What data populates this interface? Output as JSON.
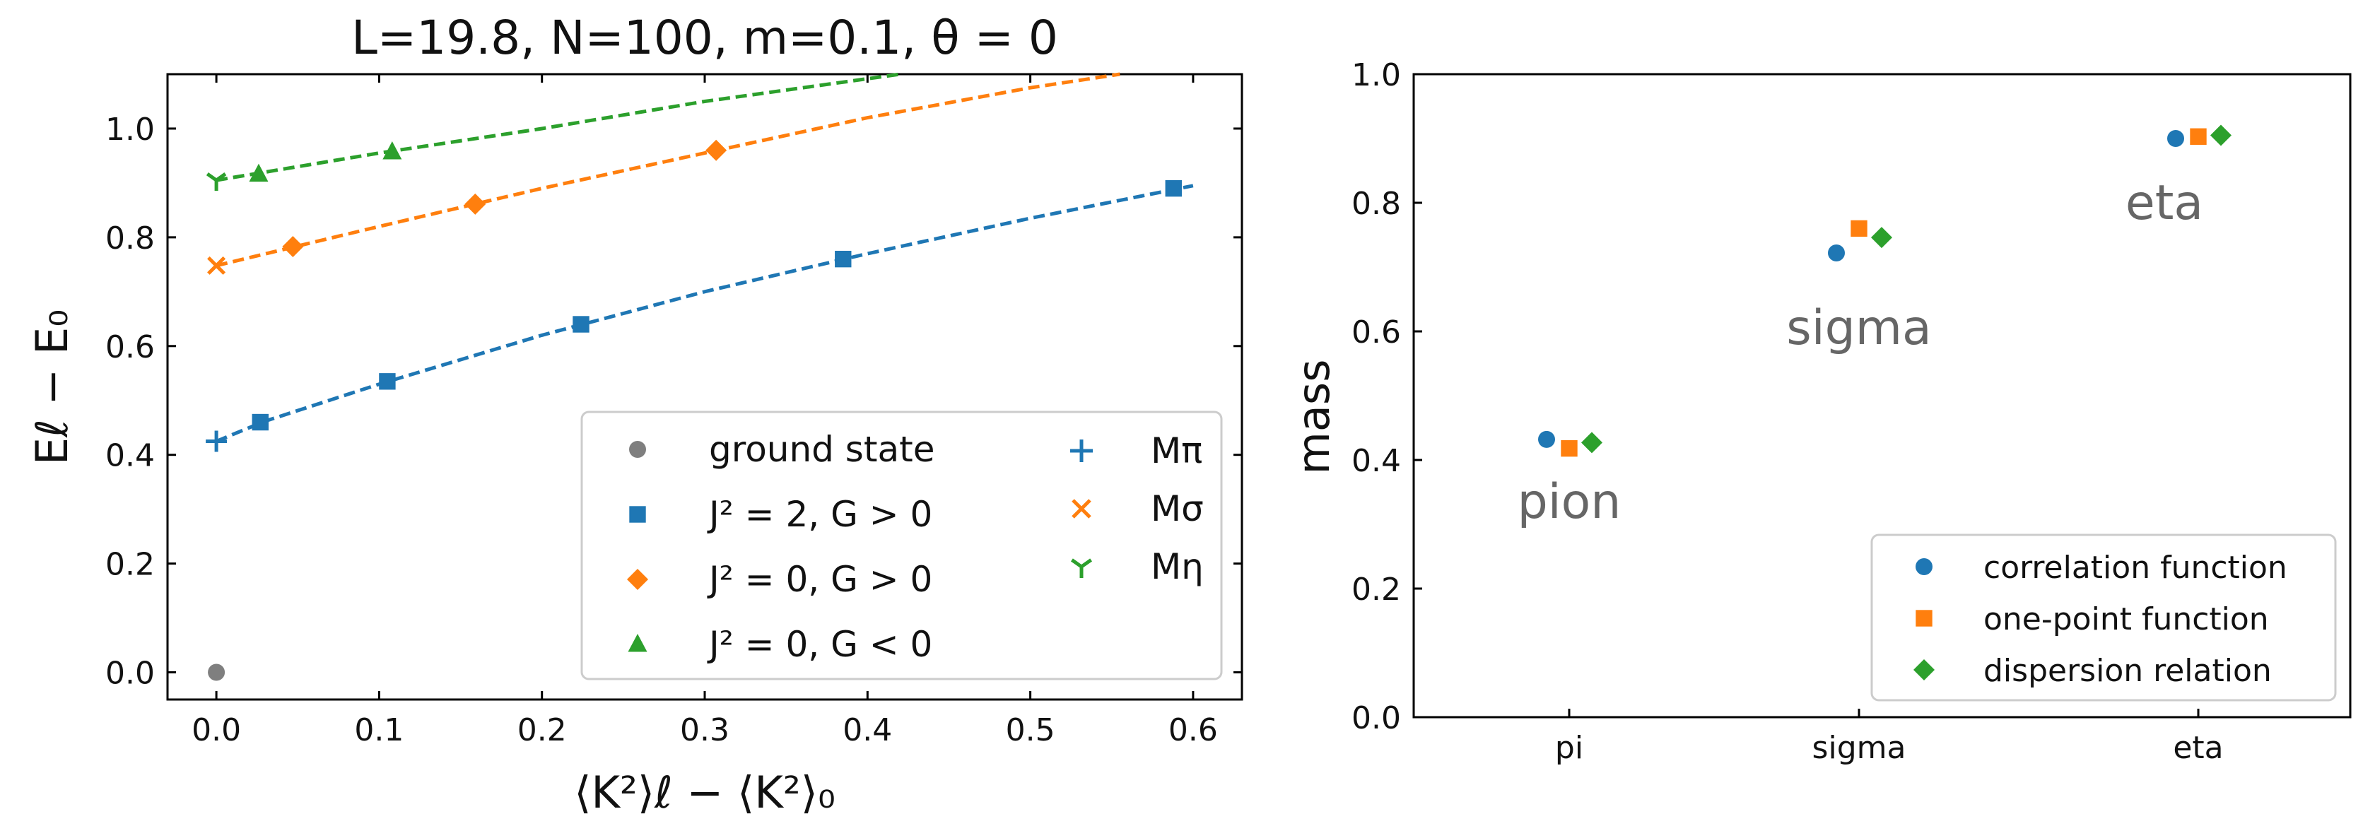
{
  "colors": {
    "blue": "#1f77b4",
    "orange": "#ff7f0e",
    "green": "#2ca02c",
    "gray": "#7f7f7f"
  },
  "chart_data": [
    {
      "type": "line",
      "title": "L=19.8, N=100, m=0.1, θ = 0",
      "xlabel": "⟨K²⟩ℓ − ⟨K²⟩₀",
      "ylabel": "Eℓ − E₀",
      "xlim": [
        -0.03,
        0.63
      ],
      "ylim": [
        -0.05,
        1.1
      ],
      "xticks": [
        "0.0",
        "0.1",
        "0.2",
        "0.3",
        "0.4",
        "0.5",
        "0.6"
      ],
      "yticks": [
        "0.0",
        "0.2",
        "0.4",
        "0.6",
        "0.8",
        "1.0"
      ],
      "series": [
        {
          "name": "J² = 2, G > 0",
          "marker": "square",
          "color": "#1f77b4",
          "points": [
            [
              0.027,
              0.46
            ],
            [
              0.105,
              0.535
            ],
            [
              0.224,
              0.64
            ],
            [
              0.385,
              0.76
            ],
            [
              0.588,
              0.89
            ]
          ],
          "fit": [
            [
              0.0,
              0.425
            ],
            [
              0.03,
              0.462
            ],
            [
              0.1,
              0.53
            ],
            [
              0.2,
              0.62
            ],
            [
              0.3,
              0.7
            ],
            [
              0.4,
              0.77
            ],
            [
              0.5,
              0.835
            ],
            [
              0.6,
              0.895
            ]
          ]
        },
        {
          "name": "J² = 0, G > 0",
          "marker": "diamond",
          "color": "#ff7f0e",
          "points": [
            [
              0.047,
              0.783
            ],
            [
              0.159,
              0.861
            ],
            [
              0.307,
              0.96
            ]
          ],
          "fit": [
            [
              0.0,
              0.748
            ],
            [
              0.1,
              0.82
            ],
            [
              0.2,
              0.89
            ],
            [
              0.3,
              0.955
            ],
            [
              0.4,
              1.02
            ],
            [
              0.5,
              1.075
            ],
            [
              0.555,
              1.1
            ]
          ]
        },
        {
          "name": "J² = 0, G < 0",
          "marker": "triangle",
          "color": "#2ca02c",
          "points": [
            [
              0.026,
              0.916
            ],
            [
              0.108,
              0.957
            ]
          ],
          "fit": [
            [
              0.0,
              0.905
            ],
            [
              0.1,
              0.955
            ],
            [
              0.2,
              1.0
            ],
            [
              0.3,
              1.05
            ],
            [
              0.42,
              1.1
            ]
          ]
        },
        {
          "name": "ground state",
          "marker": "circle",
          "color": "#7f7f7f",
          "points": [
            [
              0.0,
              0.0
            ]
          ]
        },
        {
          "name": "Mπ",
          "marker": "plus",
          "color": "#1f77b4",
          "points": [
            [
              0.0,
              0.425
            ]
          ]
        },
        {
          "name": "Mσ",
          "marker": "x",
          "color": "#ff7f0e",
          "points": [
            [
              0.0,
              0.748
            ]
          ]
        },
        {
          "name": "Mη",
          "marker": "tri_down",
          "color": "#2ca02c",
          "points": [
            [
              0.0,
              0.905
            ]
          ]
        }
      ],
      "legend": {
        "placement": "lower-right",
        "col1": [
          {
            "marker": "circle",
            "color": "#7f7f7f",
            "label": "ground state"
          },
          {
            "marker": "square",
            "color": "#1f77b4",
            "label": "J² = 2, G > 0"
          },
          {
            "marker": "diamond",
            "color": "#ff7f0e",
            "label": "J² = 0, G > 0"
          },
          {
            "marker": "triangle",
            "color": "#2ca02c",
            "label": "J² = 0, G < 0"
          }
        ],
        "col2": [
          {
            "marker": "plus",
            "color": "#1f77b4",
            "label": "Mπ"
          },
          {
            "marker": "x",
            "color": "#ff7f0e",
            "label": "Mσ"
          },
          {
            "marker": "tri_down",
            "color": "#2ca02c",
            "label": "Mη"
          }
        ]
      }
    },
    {
      "type": "scatter",
      "title": "",
      "xlabel": "",
      "ylabel": "mass",
      "ylim": [
        0.0,
        1.0
      ],
      "categories": [
        "pi",
        "sigma",
        "eta"
      ],
      "yticks": [
        "0.0",
        "0.2",
        "0.4",
        "0.6",
        "0.8",
        "1.0"
      ],
      "series": [
        {
          "name": "correlation function",
          "marker": "circle",
          "color": "#1f77b4",
          "offset": -0.08,
          "values": [
            0.432,
            0.722,
            0.9
          ]
        },
        {
          "name": "one-point function",
          "marker": "square",
          "color": "#ff7f0e",
          "offset": 0.0,
          "values": [
            0.418,
            0.76,
            0.903
          ]
        },
        {
          "name": "dispersion relation",
          "marker": "diamond",
          "color": "#2ca02c",
          "offset": 0.08,
          "values": [
            0.427,
            0.746,
            0.905
          ]
        }
      ],
      "annotations": [
        {
          "text": "pion",
          "x": 0.0,
          "y": 0.31
        },
        {
          "text": "sigma",
          "x": 1.0,
          "y": 0.58
        },
        {
          "text": "eta",
          "x": 1.9,
          "y": 0.775
        }
      ],
      "legend": {
        "placement": "lower-right"
      }
    }
  ]
}
